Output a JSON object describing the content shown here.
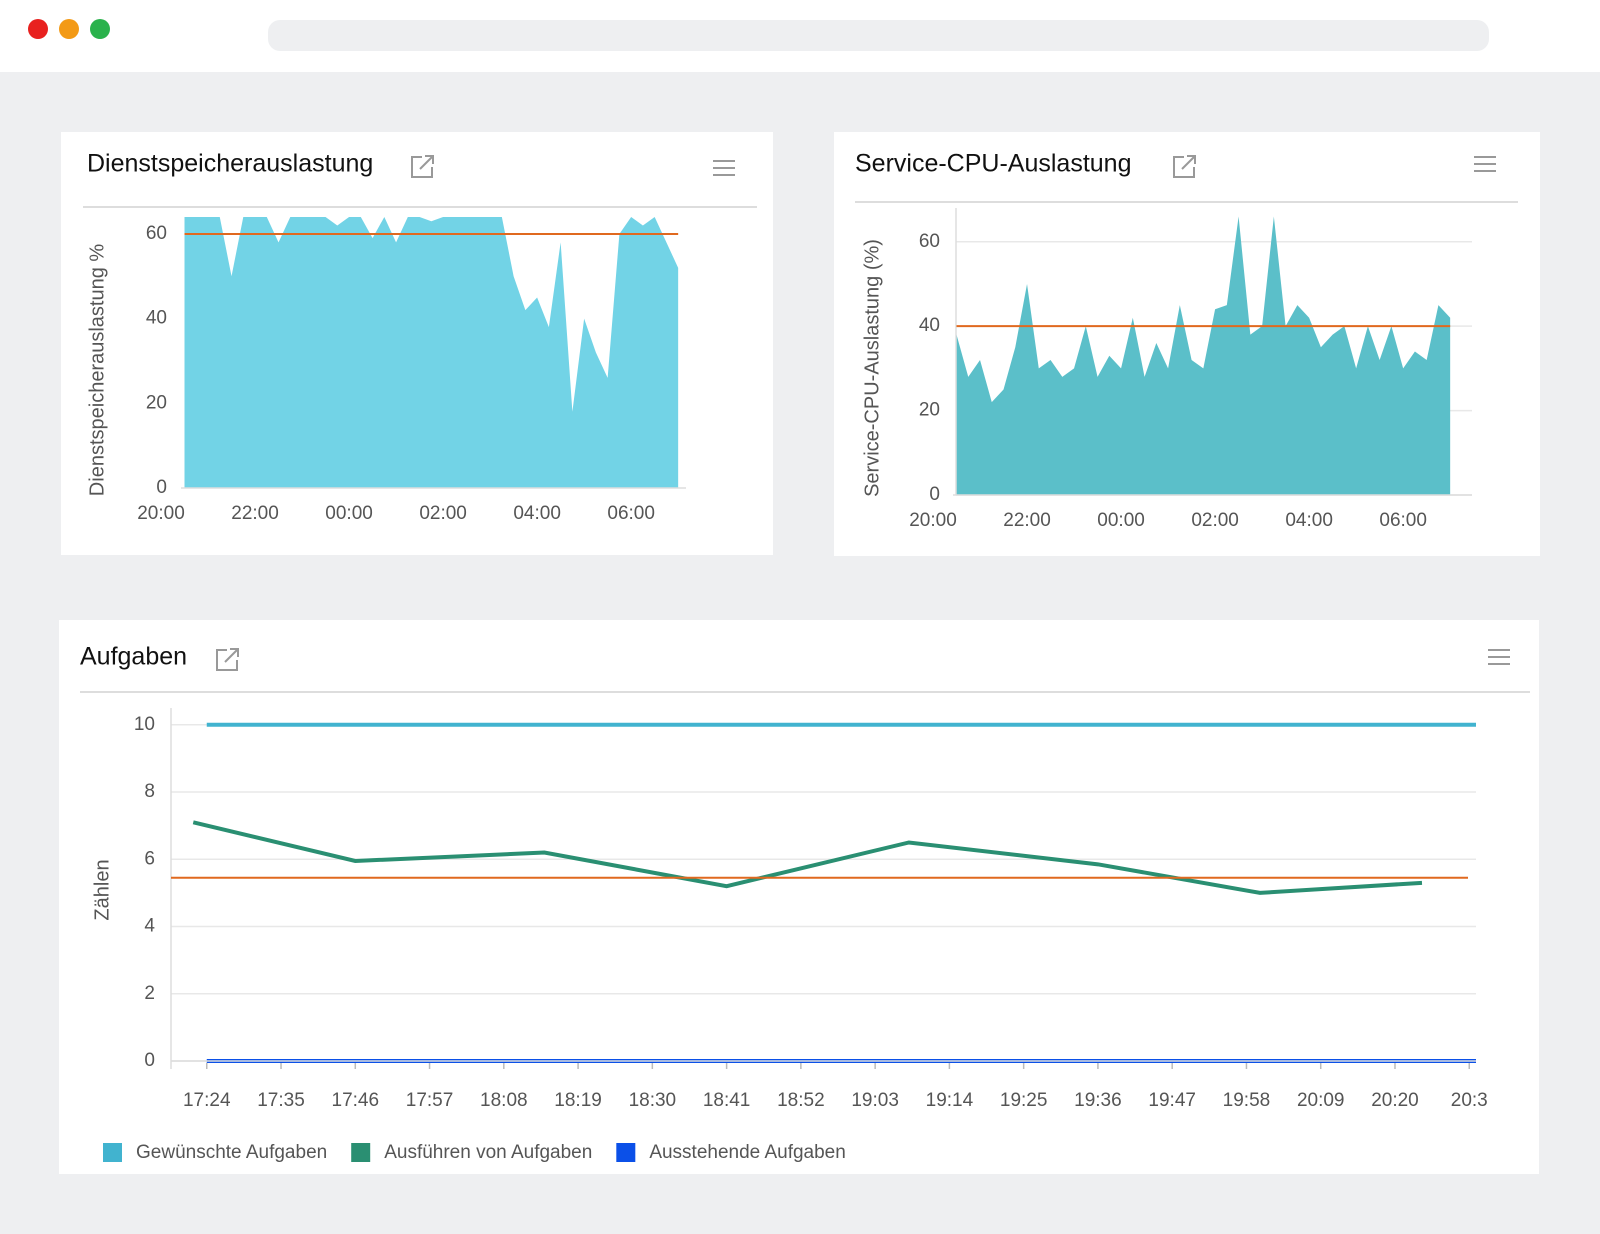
{
  "chart_data": [
    {
      "type": "area",
      "title": "Dienstspeicherauslastung",
      "y_label": "Dienstspeicherauslastung %",
      "x": [
        "20:30",
        "20:45",
        "21:00",
        "21:15",
        "21:30",
        "21:45",
        "22:00",
        "22:15",
        "22:30",
        "22:45",
        "23:00",
        "23:15",
        "23:30",
        "23:45",
        "00:00",
        "00:15",
        "00:30",
        "00:45",
        "01:00",
        "01:15",
        "01:30",
        "01:45",
        "02:00",
        "02:15",
        "02:30",
        "02:45",
        "03:00",
        "03:15",
        "03:30",
        "03:45",
        "04:00",
        "04:15",
        "04:30",
        "04:45",
        "05:00",
        "05:15",
        "05:30",
        "05:45",
        "06:00",
        "06:15",
        "06:30",
        "06:45",
        "07:00"
      ],
      "series": [
        {
          "color": "#72d3e6",
          "values": [
            64,
            64,
            64,
            64,
            50,
            64,
            64,
            64,
            58,
            64,
            64,
            64,
            64,
            62,
            64,
            64,
            59,
            64,
            58,
            64,
            64,
            63,
            64,
            64,
            64,
            64,
            64,
            64,
            50,
            42,
            45,
            38,
            58,
            18,
            40,
            32,
            26,
            60,
            64,
            62,
            64,
            58,
            52
          ]
        }
      ],
      "threshold": 60,
      "threshold_color": "#e0691f",
      "xlim": [
        "20:00",
        "07:10"
      ],
      "xticks": [
        "20:00",
        "22:00",
        "00:00",
        "02:00",
        "04:00",
        "06:00"
      ],
      "ylim": [
        0,
        64
      ],
      "yticks": [
        0,
        20,
        40,
        60
      ],
      "grid": false
    },
    {
      "type": "area",
      "title": "Service-CPU-Auslastung",
      "y_label": "Service-CPU-Auslastung (%)",
      "x": [
        "20:30",
        "20:45",
        "21:00",
        "21:15",
        "21:30",
        "21:45",
        "22:00",
        "22:15",
        "22:30",
        "22:45",
        "23:00",
        "23:15",
        "23:30",
        "23:45",
        "00:00",
        "00:15",
        "00:30",
        "00:45",
        "01:00",
        "01:15",
        "01:30",
        "01:45",
        "02:00",
        "02:15",
        "02:30",
        "02:45",
        "03:00",
        "03:15",
        "03:30",
        "03:45",
        "04:00",
        "04:15",
        "04:30",
        "04:45",
        "05:00",
        "05:15",
        "05:30",
        "05:45",
        "06:00",
        "06:15",
        "06:30",
        "06:45",
        "07:00"
      ],
      "series": [
        {
          "color": "#5bbfc9",
          "values": [
            38,
            28,
            32,
            22,
            25,
            35,
            50,
            30,
            32,
            28,
            30,
            40,
            28,
            33,
            30,
            42,
            28,
            36,
            30,
            45,
            32,
            30,
            44,
            45,
            66,
            38,
            40,
            66,
            40,
            45,
            42,
            35,
            38,
            40,
            30,
            40,
            32,
            40,
            30,
            34,
            32,
            45,
            42
          ]
        }
      ],
      "threshold": 40,
      "threshold_color": "#e0691f",
      "xlim": [
        "20:00",
        "07:10"
      ],
      "xticks": [
        "20:00",
        "22:00",
        "00:00",
        "02:00",
        "04:00",
        "06:00"
      ],
      "ylim": [
        0,
        68
      ],
      "yticks": [
        0,
        20,
        40,
        60
      ],
      "grid": true
    },
    {
      "type": "line",
      "title": "Aufgaben",
      "y_label": "Zählen",
      "series": [
        {
          "name": "Gewünschte Aufgaben",
          "color": "#41b3cf",
          "x": [
            "17:24",
            "20:32"
          ],
          "values": [
            10,
            10
          ]
        },
        {
          "name": "Ausführen von Aufgaben",
          "color": "#2a8f72",
          "x": [
            "17:22",
            "17:46",
            "18:14",
            "18:41",
            "19:08",
            "19:36",
            "20:00",
            "20:24"
          ],
          "values": [
            7.1,
            5.95,
            6.2,
            5.2,
            6.5,
            5.85,
            5.0,
            5.3
          ]
        },
        {
          "name": "Ausstehende Aufgaben",
          "color": "#0b50e8",
          "x": [
            "17:24",
            "20:32"
          ],
          "values": [
            0,
            0
          ]
        }
      ],
      "threshold": 5.45,
      "threshold_color": "#e0691f",
      "xlim": [
        "17:19",
        "20:32"
      ],
      "xticks": [
        "17:24",
        "17:35",
        "17:46",
        "17:57",
        "18:08",
        "18:19",
        "18:30",
        "18:41",
        "18:52",
        "19:03",
        "19:14",
        "19:25",
        "19:36",
        "19:47",
        "19:58",
        "20:09",
        "20:20",
        {
          "value": "20:31",
          "label": "20:3"
        }
      ],
      "ylim": [
        0,
        10.5
      ],
      "yticks": [
        0,
        2,
        4,
        6,
        8,
        10
      ],
      "grid": true,
      "legend": "bottom-left"
    }
  ]
}
